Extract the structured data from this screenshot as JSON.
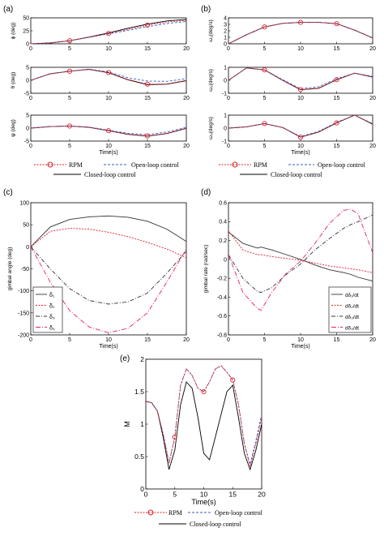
{
  "colors": {
    "rpm": "#e0202a",
    "open": "#3a5fcd",
    "closed": "#000000",
    "d1": "#333333",
    "d2": "#e0202a",
    "d3": "#333333",
    "d4": "#e0206e"
  },
  "chart_data": [
    {
      "panel": "(a)",
      "type": "line",
      "subplots": [
        {
          "ylabel": "ϕ (deg)",
          "xlim": [
            0,
            20
          ],
          "ylim": [
            0,
            50
          ],
          "xticks": [
            0,
            5,
            10,
            15,
            20
          ],
          "yticks": [
            0,
            25,
            50
          ],
          "x": [
            0,
            2.5,
            5,
            7.5,
            10,
            12.5,
            15,
            17.5,
            20
          ],
          "series": [
            {
              "name": "RPM",
              "values": [
                0,
                1.5,
                6,
                12.5,
                20,
                28,
                36,
                42,
                45
              ]
            },
            {
              "name": "Open-loop control",
              "values": [
                0,
                1.5,
                6,
                12.5,
                19,
                26,
                33,
                39,
                43
              ]
            },
            {
              "name": "Closed-loop control",
              "values": [
                0,
                1.5,
                6,
                13,
                21,
                30,
                38,
                44,
                47
              ]
            }
          ],
          "markers": [
            5,
            10,
            15
          ]
        },
        {
          "ylabel": "θ (deg)",
          "xlim": [
            0,
            20
          ],
          "ylim": [
            -5,
            5
          ],
          "xticks": [
            0,
            5,
            10,
            15,
            20
          ],
          "yticks": [
            -5,
            0,
            5
          ],
          "x": [
            0,
            2.5,
            5,
            7.5,
            10,
            12.5,
            15,
            17.5,
            20
          ],
          "series": [
            {
              "name": "RPM",
              "values": [
                0,
                2.5,
                3.5,
                4.2,
                3.0,
                0.3,
                -1.5,
                -1.4,
                0
              ]
            },
            {
              "name": "Open-loop control",
              "values": [
                0,
                2.5,
                3.5,
                4.3,
                3.2,
                1.0,
                -0.3,
                -0.4,
                0.6
              ]
            },
            {
              "name": "Closed-loop control",
              "values": [
                0,
                2.5,
                3.5,
                4.2,
                2.9,
                0.2,
                -1.7,
                -1.5,
                -0.2
              ]
            }
          ],
          "markers": [
            5,
            10,
            15
          ]
        },
        {
          "ylabel": "ψ (deg)",
          "xlim": [
            0,
            20
          ],
          "ylim": [
            -5,
            5
          ],
          "xticks": [
            0,
            5,
            10,
            15,
            20
          ],
          "yticks": [
            -5,
            0,
            5
          ],
          "x": [
            0,
            2.5,
            5,
            7.5,
            10,
            12.5,
            15,
            17.5,
            20
          ],
          "series": [
            {
              "name": "RPM",
              "values": [
                0,
                0.6,
                0.8,
                0.3,
                -1.0,
                -2.3,
                -3.0,
                -2.0,
                0
              ]
            },
            {
              "name": "Open-loop control",
              "values": [
                0,
                0.6,
                0.8,
                0.4,
                -0.8,
                -2.0,
                -2.5,
                -1.5,
                0.3
              ]
            },
            {
              "name": "Closed-loop control",
              "values": [
                0,
                0.6,
                0.8,
                0.3,
                -1.0,
                -2.4,
                -3.1,
                -2.1,
                -0.1
              ]
            }
          ],
          "markers": [
            5,
            10,
            15
          ],
          "xlabel": "Time(s)"
        }
      ],
      "legend": [
        "RPM",
        "Open-loop control",
        "Closed-loop control"
      ]
    },
    {
      "panel": "(b)",
      "type": "line",
      "subplots": [
        {
          "ylabel": "ω₁(deg/s)",
          "xlim": [
            0,
            20
          ],
          "ylim": [
            0,
            4
          ],
          "xticks": [
            0,
            5,
            10,
            15,
            20
          ],
          "yticks": [
            0,
            1,
            2,
            3,
            4
          ],
          "x": [
            0,
            2.5,
            5,
            7.5,
            10,
            12.5,
            15,
            17.5,
            20
          ],
          "series": [
            {
              "name": "RPM",
              "values": [
                0,
                1.4,
                2.6,
                3.15,
                3.3,
                3.3,
                3.1,
                2.1,
                0.9
              ]
            },
            {
              "name": "Open-loop control",
              "values": [
                0,
                1.4,
                2.6,
                3.15,
                3.3,
                3.3,
                3.1,
                2.1,
                0.9
              ]
            },
            {
              "name": "Closed-loop control",
              "values": [
                0,
                1.4,
                2.6,
                3.15,
                3.3,
                3.3,
                3.1,
                2.1,
                0.9
              ]
            }
          ],
          "markers": [
            5,
            10,
            15
          ]
        },
        {
          "ylabel": "ω₂(deg/s)",
          "xlim": [
            0,
            20
          ],
          "ylim": [
            -1,
            1
          ],
          "xticks": [
            0,
            5,
            10,
            15,
            20
          ],
          "yticks": [
            -1,
            0,
            1
          ],
          "x": [
            0,
            2.5,
            5,
            7.5,
            10,
            12.5,
            15,
            17.5,
            20
          ],
          "series": [
            {
              "name": "RPM",
              "values": [
                0,
                0.95,
                0.8,
                0.0,
                -0.72,
                -0.6,
                0.05,
                0.55,
                0.25
              ]
            },
            {
              "name": "Open-loop control",
              "values": [
                0,
                0.95,
                0.8,
                0.05,
                -0.65,
                -0.5,
                0.12,
                0.55,
                0.3
              ]
            },
            {
              "name": "Closed-loop control",
              "values": [
                0,
                0.95,
                0.8,
                0.0,
                -0.73,
                -0.62,
                0.03,
                0.55,
                0.25
              ]
            }
          ],
          "markers": [
            5,
            10,
            15
          ]
        },
        {
          "ylabel": "ω₃(deg/s)",
          "xlim": [
            0,
            20
          ],
          "ylim": [
            -1,
            1
          ],
          "xticks": [
            0,
            5,
            10,
            15,
            20
          ],
          "yticks": [
            -1,
            0,
            1
          ],
          "x": [
            0,
            2.5,
            5,
            7.5,
            10,
            12.5,
            15,
            17.5,
            20
          ],
          "series": [
            {
              "name": "RPM",
              "values": [
                0,
                0.1,
                0.35,
                0.05,
                -0.7,
                -0.3,
                0.4,
                1.0,
                0.3
              ]
            },
            {
              "name": "Open-loop control",
              "values": [
                0,
                0.1,
                0.35,
                0.05,
                -0.65,
                -0.25,
                0.45,
                1.0,
                0.35
              ]
            },
            {
              "name": "Closed-loop control",
              "values": [
                0,
                0.1,
                0.35,
                0.05,
                -0.7,
                -0.3,
                0.4,
                1.0,
                0.3
              ]
            }
          ],
          "markers": [
            5,
            10,
            15
          ],
          "xlabel": "Time(s)"
        }
      ],
      "legend": [
        "RPM",
        "Open-loop control",
        "Closed-loop control"
      ]
    },
    {
      "panel": "(c)",
      "type": "line",
      "xlabel": "Time(s)",
      "ylabel": "gimbal angle (deg)",
      "xlim": [
        0,
        20
      ],
      "ylim": [
        -200,
        100
      ],
      "xticks": [
        0,
        5,
        10,
        15,
        20
      ],
      "yticks": [
        -200,
        -150,
        -100,
        -50,
        0,
        50,
        100
      ],
      "x": [
        0,
        2.5,
        5,
        7.5,
        10,
        12.5,
        15,
        17.5,
        20
      ],
      "series": [
        {
          "name": "δ₁",
          "values": [
            0,
            45,
            62,
            68,
            70,
            67,
            58,
            40,
            12
          ]
        },
        {
          "name": "δ₂",
          "values": [
            0,
            35,
            42,
            40,
            33,
            23,
            10,
            -5,
            -25
          ]
        },
        {
          "name": "δ₃",
          "values": [
            0,
            -50,
            -95,
            -122,
            -130,
            -125,
            -105,
            -60,
            -10
          ]
        },
        {
          "name": "δ₄",
          "values": [
            0,
            -80,
            -145,
            -182,
            -195,
            -185,
            -150,
            -80,
            -5
          ]
        }
      ],
      "legend_labels": [
        "δ₁",
        "δ₂",
        "δ₃",
        "δ₄"
      ],
      "legend_placement": "bottom-left"
    },
    {
      "panel": "(d)",
      "type": "line",
      "xlabel": "Time(s)",
      "ylabel": "gimbal rate (rad/sec)",
      "xlim": [
        0,
        20
      ],
      "ylim": [
        -0.8,
        0.6
      ],
      "xticks": [
        0,
        5,
        10,
        15,
        20
      ],
      "yticks": [
        -0.8,
        -0.6,
        -0.4,
        -0.2,
        0,
        0.2,
        0.4,
        0.6
      ],
      "x": [
        0,
        2,
        4,
        4.5,
        6,
        8,
        10,
        12,
        14,
        16,
        17,
        18,
        20
      ],
      "series": [
        {
          "name": "dδ₁/dt",
          "values": [
            0.29,
            0.17,
            0.12,
            0.13,
            0.1,
            0.05,
            0.0,
            -0.06,
            -0.11,
            -0.14,
            -0.16,
            -0.19,
            -0.23
          ]
        },
        {
          "name": "dδ₂/dt",
          "values": [
            0.3,
            0.1,
            0.05,
            0.05,
            0.03,
            0.01,
            -0.01,
            -0.04,
            -0.07,
            -0.09,
            -0.1,
            -0.11,
            -0.14
          ]
        },
        {
          "name": "dδ₃/dt",
          "values": [
            0.05,
            -0.2,
            -0.34,
            -0.35,
            -0.3,
            -0.16,
            -0.05,
            0.1,
            0.22,
            0.33,
            0.37,
            0.4,
            0.47
          ]
        },
        {
          "name": "dδ₄/dt",
          "values": [
            0.05,
            -0.35,
            -0.52,
            -0.54,
            -0.35,
            -0.15,
            -0.02,
            0.17,
            0.38,
            0.52,
            0.53,
            0.48,
            0.07
          ]
        }
      ],
      "legend_labels": [
        "dδ₁/dt",
        "dδ₂/dt",
        "dδ₃/dt",
        "dδ₄/dt"
      ],
      "legend_placement": "bottom-right"
    },
    {
      "panel": "(e)",
      "type": "line",
      "xlabel": "Time(s)",
      "ylabel": "M",
      "xlim": [
        0,
        20
      ],
      "ylim": [
        0,
        2
      ],
      "xticks": [
        0,
        5,
        10,
        15,
        20
      ],
      "yticks": [
        0,
        0.5,
        1,
        1.5,
        2
      ],
      "x": [
        0,
        1,
        2,
        3,
        4,
        5,
        6,
        7,
        8,
        9,
        10,
        11,
        12,
        13,
        14,
        15,
        16,
        17,
        18,
        19,
        20
      ],
      "series": [
        {
          "name": "RPM",
          "values": [
            1.35,
            1.33,
            1.2,
            0.85,
            0.4,
            0.8,
            1.6,
            1.85,
            1.75,
            1.55,
            1.5,
            1.65,
            1.85,
            1.9,
            1.8,
            1.68,
            1.3,
            0.7,
            0.35,
            0.7,
            1.1
          ]
        },
        {
          "name": "Open-loop control",
          "values": [
            1.35,
            1.33,
            1.2,
            0.85,
            0.4,
            0.8,
            1.6,
            1.85,
            1.75,
            1.55,
            1.5,
            1.65,
            1.85,
            1.9,
            1.8,
            1.68,
            1.3,
            0.7,
            0.38,
            0.75,
            1.15
          ]
        },
        {
          "name": "Closed-loop control",
          "values": [
            1.35,
            1.33,
            1.2,
            0.8,
            0.3,
            0.6,
            1.3,
            1.65,
            1.55,
            1.1,
            0.55,
            0.45,
            0.8,
            1.15,
            1.5,
            1.6,
            1.1,
            0.55,
            0.3,
            0.6,
            1.0
          ]
        }
      ],
      "markers": [
        5,
        10,
        15
      ],
      "legend": [
        "RPM",
        "Open-loop control",
        "Closed-loop control"
      ]
    }
  ],
  "labels": {
    "panel_a": "(a)",
    "panel_b": "(b)",
    "panel_c": "(c)",
    "panel_d": "(d)",
    "panel_e": "(e)",
    "time": "Time(s)",
    "rpm": "RPM",
    "open": "Open-loop control",
    "closed": "Closed-loop control"
  }
}
